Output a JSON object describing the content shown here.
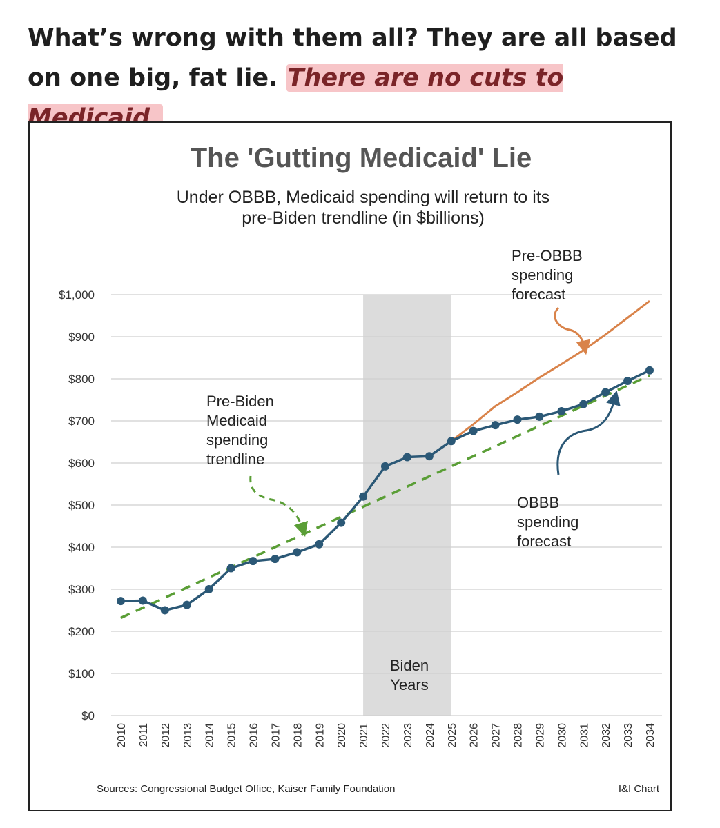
{
  "headline": {
    "text": "What’s wrong with them all? They are all based on one big, fat lie. ",
    "highlight": "There are no cuts to Medicaid."
  },
  "colors": {
    "obbb": "#2b5876",
    "pre_obbb": "#d9834a",
    "trend": "#5a9e36",
    "biden_band": "#dcdcdc",
    "highlight_bg": "#f7c5c8",
    "highlight_text": "#7a2428"
  },
  "chart_data": {
    "type": "line",
    "title": "The 'Gutting Medicaid' Lie",
    "subtitle_line1": "Under OBBB, Medicaid spending will return to its",
    "subtitle_line2": "pre-Biden trendline (in $billions)",
    "xlabel": "",
    "ylabel": "",
    "ylim": [
      0,
      1000
    ],
    "yticks": [
      0,
      100,
      200,
      300,
      400,
      500,
      600,
      700,
      800,
      900,
      1000
    ],
    "ytick_labels": [
      "$0",
      "$100",
      "$200",
      "$300",
      "$400",
      "$500",
      "$600",
      "$700",
      "$800",
      "$900",
      "$1,000"
    ],
    "x": [
      2010,
      2011,
      2012,
      2013,
      2014,
      2015,
      2016,
      2017,
      2018,
      2019,
      2020,
      2021,
      2022,
      2023,
      2024,
      2025,
      2026,
      2027,
      2028,
      2029,
      2030,
      2031,
      2032,
      2033,
      2034
    ],
    "series": [
      {
        "name": "OBBB spending forecast",
        "x": [
          2010,
          2011,
          2012,
          2013,
          2014,
          2015,
          2016,
          2017,
          2018,
          2019,
          2020,
          2021,
          2022,
          2023,
          2024,
          2025,
          2026,
          2027,
          2028,
          2029,
          2030,
          2031,
          2032,
          2033,
          2034
        ],
        "values": [
          272,
          273,
          250,
          263,
          300,
          350,
          367,
          372,
          388,
          407,
          458,
          520,
          592,
          614,
          616,
          652,
          676,
          690,
          703,
          710,
          723,
          740,
          768,
          795,
          820
        ]
      },
      {
        "name": "Pre-OBBB spending forecast",
        "x": [
          2025,
          2026,
          2027,
          2028,
          2029,
          2030,
          2031,
          2032,
          2033,
          2034
        ],
        "values": [
          652,
          692,
          735,
          768,
          803,
          835,
          868,
          905,
          945,
          985
        ]
      },
      {
        "name": "Pre-Biden Medicaid spending trendline",
        "x": [
          2010,
          2034
        ],
        "values": [
          232,
          808
        ]
      }
    ],
    "biden_years": {
      "start": 2021,
      "end": 2025,
      "label_line1": "Biden",
      "label_line2": "Years"
    },
    "annotations": {
      "pre_obbb": [
        "Pre-OBBB",
        "spending",
        "forecast"
      ],
      "pre_biden": [
        "Pre-Biden",
        "Medicaid",
        "spending",
        "trendline"
      ],
      "obbb": [
        "OBBB",
        "spending",
        "forecast"
      ]
    },
    "source": "Sources: Congressional Budget Office, Kaiser Family Foundation",
    "credit": "I&I Chart",
    "grid": true,
    "legend": "none"
  }
}
